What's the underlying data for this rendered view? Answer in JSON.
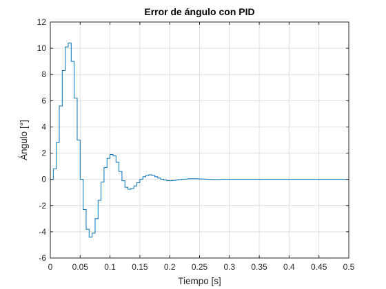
{
  "chart_data": {
    "type": "line",
    "title": "Error de ángulo con PID",
    "xlabel": "Tiempo [s]",
    "ylabel": "Ángulo [°]",
    "xlim": [
      0,
      0.5
    ],
    "ylim": [
      -6,
      12
    ],
    "xticks": [
      "0",
      "0.05",
      "0.1",
      "0.15",
      "0.2",
      "0.25",
      "0.3",
      "0.35",
      "0.4",
      "0.45",
      "0.5"
    ],
    "yticks": [
      "-6",
      "-4",
      "-2",
      "0",
      "2",
      "4",
      "6",
      "8",
      "10",
      "12"
    ],
    "grid": true,
    "step": true,
    "line_color": "#0072BD",
    "series": [
      {
        "x": [
          0,
          0.005,
          0.01,
          0.015,
          0.02,
          0.025,
          0.03,
          0.035,
          0.04,
          0.045,
          0.05,
          0.055,
          0.06,
          0.065,
          0.07,
          0.075,
          0.08,
          0.085,
          0.09,
          0.095,
          0.1,
          0.105,
          0.11,
          0.115,
          0.12,
          0.125,
          0.13,
          0.135,
          0.14,
          0.145,
          0.15,
          0.155,
          0.16,
          0.165,
          0.17,
          0.175,
          0.18,
          0.185,
          0.19,
          0.195,
          0.2,
          0.205,
          0.21,
          0.215,
          0.22,
          0.225,
          0.23,
          0.235,
          0.24,
          0.245,
          0.25,
          0.255,
          0.26,
          0.265,
          0.27,
          0.275,
          0.28,
          0.285,
          0.29,
          0.295,
          0.3,
          0.35,
          0.4,
          0.45,
          0.5
        ],
        "y": [
          0,
          0.8,
          2.8,
          5.6,
          8.3,
          10.1,
          10.4,
          9.0,
          6.2,
          3.0,
          0.0,
          -2.3,
          -3.8,
          -4.4,
          -4.1,
          -3.0,
          -1.6,
          -0.2,
          0.9,
          1.6,
          1.9,
          1.8,
          1.3,
          0.6,
          -0.1,
          -0.6,
          -0.75,
          -0.7,
          -0.5,
          -0.25,
          0.0,
          0.2,
          0.3,
          0.35,
          0.3,
          0.2,
          0.1,
          0.0,
          -0.05,
          -0.1,
          -0.1,
          -0.08,
          -0.05,
          -0.02,
          0.0,
          0.02,
          0.04,
          0.05,
          0.05,
          0.04,
          0.03,
          0.02,
          0.01,
          0.0,
          -0.01,
          -0.01,
          -0.01,
          0.0,
          0.0,
          0.0,
          0.0,
          0.0,
          0.0,
          0.0,
          0.0
        ]
      }
    ]
  }
}
